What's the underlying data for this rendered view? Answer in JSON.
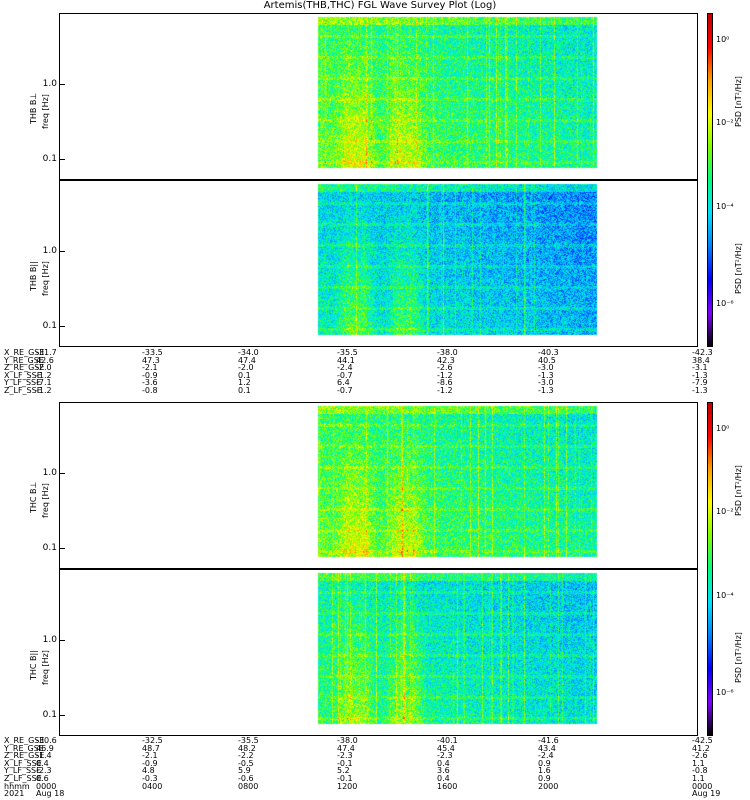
{
  "title": "Artemis(THB,THC) FGL Wave Survey Plot (Log)",
  "colorbar": {
    "label": "PSD [nT²/Hz]",
    "ticks": [
      "10⁰",
      "10⁻²",
      "10⁻⁴",
      "10⁻⁶"
    ],
    "colormap": [
      "#000000",
      "#7f00ff",
      "#0000ff",
      "#0080ff",
      "#00e0ff",
      "#00ff80",
      "#80ff00",
      "#ffff00",
      "#ffa000",
      "#ff0000",
      "#c00000"
    ]
  },
  "chart_data": [
    {
      "type": "heatmap",
      "ylabel": "freq [Hz]",
      "panel_label": "THB B⊥",
      "yscale": "log",
      "yticks": [
        "1.0",
        "0.1"
      ],
      "data_span": [
        "1000",
        "2000"
      ],
      "intensity": "high"
    },
    {
      "type": "heatmap",
      "ylabel": "freq [Hz]",
      "panel_label": "THB B||",
      "yscale": "log",
      "yticks": [
        "1.0",
        "0.1"
      ],
      "data_span": [
        "1000",
        "2000"
      ],
      "intensity": "low"
    },
    {
      "type": "heatmap",
      "ylabel": "freq [Hz]",
      "panel_label": "THC B⊥",
      "yscale": "log",
      "yticks": [
        "1.0",
        "0.1"
      ],
      "data_span": [
        "1000",
        "2000"
      ],
      "intensity": "high"
    },
    {
      "type": "heatmap",
      "ylabel": "freq [Hz]",
      "panel_label": "THC B||",
      "yscale": "log",
      "yticks": [
        "1.0",
        "0.1"
      ],
      "data_span": [
        "1000",
        "2000"
      ],
      "intensity": "medium"
    }
  ],
  "ephemeris_thb": {
    "rows": [
      {
        "label": "X_RE_GSE",
        "values": [
          "-31.7",
          "-33.5",
          "-34.0",
          "-35.5",
          "-38.0",
          "-40.3",
          "-42.3"
        ]
      },
      {
        "label": "Y_RE_GSE",
        "values": [
          "42.6",
          "47.3",
          "47.4",
          "44.1",
          "42.3",
          "40.5",
          "38.4"
        ]
      },
      {
        "label": "Z_RE_GSE",
        "values": [
          "-2.0",
          "-2.1",
          "-2.0",
          "-2.4",
          "-2.6",
          "-3.0",
          "-3.1"
        ]
      },
      {
        "label": "X_LF_SSE",
        "values": [
          "-1.2",
          "-0.9",
          "0.1",
          "-0.7",
          "-1.2",
          "-1.3",
          "-1.3"
        ]
      },
      {
        "label": "Y_LF_SSE",
        "values": [
          "-7.1",
          "-3.6",
          "1.2",
          "6.4",
          "-8.6",
          "-3.0",
          "-7.9"
        ]
      },
      {
        "label": "Z_LF_SSE",
        "values": [
          "-1.2",
          "-0.8",
          "0.1",
          "-0.7",
          "-1.2",
          "-1.3",
          "-1.3"
        ]
      }
    ]
  },
  "ephemeris_thc": {
    "rows": [
      {
        "label": "X_RE_GSE",
        "values": [
          "-30.6",
          "-32.5",
          "-35.5",
          "-38.0",
          "-40.1",
          "-41.6",
          "-42.5"
        ]
      },
      {
        "label": "Y_RE_GSE",
        "values": [
          "46.9",
          "48.7",
          "48.2",
          "47.4",
          "45.4",
          "43.4",
          "41.2"
        ]
      },
      {
        "label": "Z_RE_GSE",
        "values": [
          "-1.4",
          "-2.1",
          "-2.2",
          "-2.3",
          "-2.3",
          "-2.4",
          "-2.6"
        ]
      },
      {
        "label": "X_LF_SSE",
        "values": [
          "0.4",
          "-0.9",
          "-0.5",
          "-0.1",
          "0.4",
          "0.9",
          "1.1"
        ]
      },
      {
        "label": "Y_LF_SSE",
        "values": [
          "-2.3",
          "4.8",
          "5.9",
          "5.2",
          "3.6",
          "1.6",
          "-0.8"
        ]
      },
      {
        "label": "Z_LF_SSE",
        "values": [
          "0.6",
          "-0.3",
          "-0.6",
          "-0.1",
          "0.4",
          "0.9",
          "1.1"
        ]
      }
    ]
  },
  "time_axis": {
    "rows": [
      {
        "label": "hhmm",
        "values": [
          "0000",
          "0400",
          "0800",
          "1200",
          "1600",
          "2000",
          "0000"
        ]
      },
      {
        "label": "2021",
        "values": [
          "Aug 18",
          "",
          "",
          "",
          "",
          "",
          "Aug 19"
        ]
      }
    ]
  }
}
